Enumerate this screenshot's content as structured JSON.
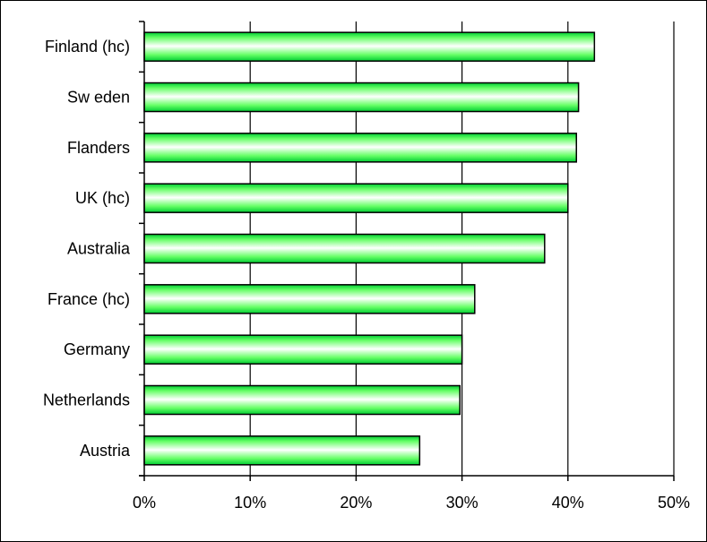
{
  "chart_data": {
    "type": "bar",
    "orientation": "horizontal",
    "categories": [
      "Finland (hc)",
      "Sw eden",
      "Flanders",
      "UK (hc)",
      "Australia",
      "France (hc)",
      "Germany",
      "Netherlands",
      "Austria"
    ],
    "values": [
      0.425,
      0.41,
      0.408,
      0.4,
      0.378,
      0.312,
      0.3,
      0.298,
      0.26
    ],
    "xlim": [
      0,
      0.5
    ],
    "xticks": [
      0,
      0.1,
      0.2,
      0.3,
      0.4,
      0.5
    ],
    "xtick_labels": [
      "0%",
      "10%",
      "20%",
      "30%",
      "40%",
      "50%"
    ],
    "grid": "vertical",
    "legend": "none",
    "title": "",
    "xlabel": "",
    "ylabel": "",
    "colors": {
      "bar_edge": "#000000",
      "bar_light": "#ffffff",
      "bar_mid": "#66ff66",
      "bar_dark": "#00cc33",
      "grid": "#000000"
    }
  }
}
